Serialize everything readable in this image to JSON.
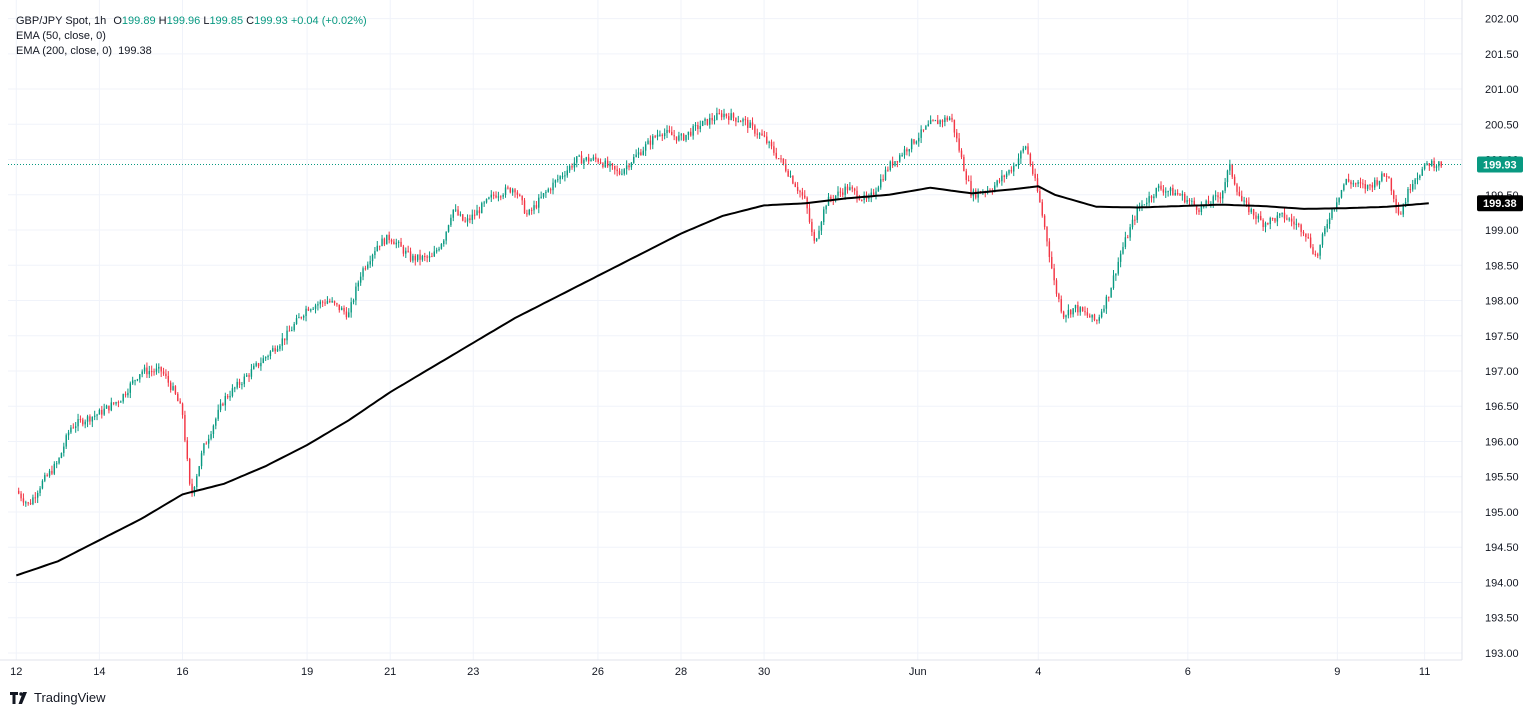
{
  "header": {
    "symbol": "GBP/JPY Spot, 1h",
    "o_label": "O",
    "o_value": "199.89",
    "h_label": "H",
    "h_value": "199.96",
    "l_label": "L",
    "l_value": "199.85",
    "c_label": "C",
    "c_value": "199.93",
    "change": "+0.04 (+0.02%)",
    "ema50": "EMA (50, close, 0)",
    "ema200": "EMA (200, close, 0)",
    "ema200_value": "199.38"
  },
  "branding": {
    "logo_text": "TradingView",
    "logo_icon": "tradingview-logo-icon"
  },
  "colors": {
    "up": "#089981",
    "down": "#f23645",
    "ema200": "#000000",
    "last_price": "#089981",
    "grid": "#f0f3fa",
    "axis_text": "#131722"
  },
  "chart_data": {
    "type": "candlestick",
    "title": "GBP/JPY Spot, 1h",
    "ylim": [
      192.9,
      202.15
    ],
    "grid": true,
    "y_ticks": [
      "202.00",
      "201.50",
      "201.00",
      "200.50",
      "200.00",
      "199.50",
      "199.00",
      "198.50",
      "198.00",
      "197.50",
      "197.00",
      "196.50",
      "196.00",
      "195.50",
      "195.00",
      "194.50",
      "194.00",
      "193.50",
      "193.00"
    ],
    "x_ticks": [
      "12",
      "14",
      "16",
      "19",
      "21",
      "23",
      "26",
      "28",
      "30",
      "Jun",
      "4",
      "6",
      "9",
      "11"
    ],
    "price_path": [
      [
        "12",
        195.3
      ],
      [
        "12.3",
        195.1
      ],
      [
        "12.6",
        195.4
      ],
      [
        "13",
        195.7
      ],
      [
        "13.3",
        196.2
      ],
      [
        "13.6",
        196.3
      ],
      [
        "14",
        196.4
      ],
      [
        "14.5",
        196.6
      ],
      [
        "15",
        197.0
      ],
      [
        "15.5",
        197.0
      ],
      [
        "15.8",
        196.7
      ],
      [
        "16",
        196.4
      ],
      [
        "16.1",
        195.8
      ],
      [
        "16.2",
        195.2
      ],
      [
        "16.5",
        195.9
      ],
      [
        "17",
        196.6
      ],
      [
        "17.5",
        196.9
      ],
      [
        "18",
        197.2
      ],
      [
        "18.5",
        197.5
      ],
      [
        "19",
        197.9
      ],
      [
        "19.5",
        198.0
      ],
      [
        "20",
        197.8
      ],
      [
        "20.3",
        198.4
      ],
      [
        "20.7",
        198.8
      ],
      [
        "21",
        198.9
      ],
      [
        "21.5",
        198.6
      ],
      [
        "22",
        198.6
      ],
      [
        "22.3",
        198.9
      ],
      [
        "22.5",
        199.3
      ],
      [
        "22.8",
        199.1
      ],
      [
        "23",
        199.2
      ],
      [
        "23.5",
        199.5
      ],
      [
        "24",
        199.6
      ],
      [
        "24.3",
        199.2
      ],
      [
        "24.7",
        199.5
      ],
      [
        "25",
        199.7
      ],
      [
        "25.5",
        200.0
      ],
      [
        "26",
        200.0
      ],
      [
        "26.5",
        199.8
      ],
      [
        "27",
        200.1
      ],
      [
        "27.5",
        200.4
      ],
      [
        "28",
        200.3
      ],
      [
        "28.5",
        200.5
      ],
      [
        "29",
        200.65
      ],
      [
        "29.5",
        200.55
      ],
      [
        "30",
        200.3
      ],
      [
        "30.5",
        199.9
      ],
      [
        "31",
        199.4
      ],
      [
        "31.2",
        198.8
      ],
      [
        "31.5",
        199.4
      ],
      [
        "32",
        199.6
      ],
      [
        "32.5",
        199.4
      ],
      [
        "33",
        199.9
      ],
      [
        "33.5",
        200.2
      ],
      [
        "34",
        200.5
      ],
      [
        "34.5",
        200.6
      ],
      [
        "34.8",
        199.9
      ],
      [
        "35",
        199.5
      ],
      [
        "35.5",
        199.6
      ],
      [
        "36",
        199.9
      ],
      [
        "36.3",
        200.2
      ],
      [
        "36.6",
        199.5
      ],
      [
        "36.8",
        198.9
      ],
      [
        "37",
        198.2
      ],
      [
        "37.2",
        197.8
      ],
      [
        "37.5",
        197.9
      ],
      [
        "38",
        197.7
      ],
      [
        "38.3",
        198.1
      ],
      [
        "38.6",
        198.7
      ],
      [
        "39",
        199.3
      ],
      [
        "39.5",
        199.6
      ],
      [
        "40",
        199.5
      ],
      [
        "40.5",
        199.3
      ],
      [
        "41",
        199.5
      ],
      [
        "41.2",
        199.9
      ],
      [
        "41.5",
        199.4
      ],
      [
        "42",
        199.1
      ],
      [
        "42.5",
        199.2
      ],
      [
        "43",
        199.0
      ],
      [
        "43.3",
        198.6
      ],
      [
        "43.6",
        199.2
      ],
      [
        "44",
        199.7
      ],
      [
        "44.5",
        199.6
      ],
      [
        "45",
        199.8
      ],
      [
        "45.3",
        199.2
      ],
      [
        "45.6",
        199.7
      ],
      [
        "46",
        199.95
      ],
      [
        "46.3",
        199.93
      ]
    ],
    "ema200_path": [
      [
        "12",
        194.1
      ],
      [
        "13",
        194.3
      ],
      [
        "14",
        194.6
      ],
      [
        "15",
        194.9
      ],
      [
        "16",
        195.25
      ],
      [
        "17",
        195.4
      ],
      [
        "18",
        195.65
      ],
      [
        "19",
        195.95
      ],
      [
        "20",
        196.3
      ],
      [
        "21",
        196.7
      ],
      [
        "22",
        197.05
      ],
      [
        "23",
        197.4
      ],
      [
        "24",
        197.75
      ],
      [
        "25",
        198.05
      ],
      [
        "26",
        198.35
      ],
      [
        "27",
        198.65
      ],
      [
        "28",
        198.95
      ],
      [
        "29",
        199.2
      ],
      [
        "30",
        199.35
      ],
      [
        "31",
        199.38
      ],
      [
        "32",
        199.45
      ],
      [
        "33",
        199.5
      ],
      [
        "34",
        199.6
      ],
      [
        "35",
        199.52
      ],
      [
        "36",
        199.58
      ],
      [
        "36.6",
        199.62
      ],
      [
        "37",
        199.5
      ],
      [
        "38",
        199.33
      ],
      [
        "39",
        199.32
      ],
      [
        "40",
        199.34
      ],
      [
        "41",
        199.36
      ],
      [
        "42",
        199.34
      ],
      [
        "43",
        199.3
      ],
      [
        "44",
        199.31
      ],
      [
        "45",
        199.33
      ],
      [
        "46",
        199.38
      ]
    ],
    "last_price": "199.93",
    "ema200_last": "199.38"
  }
}
